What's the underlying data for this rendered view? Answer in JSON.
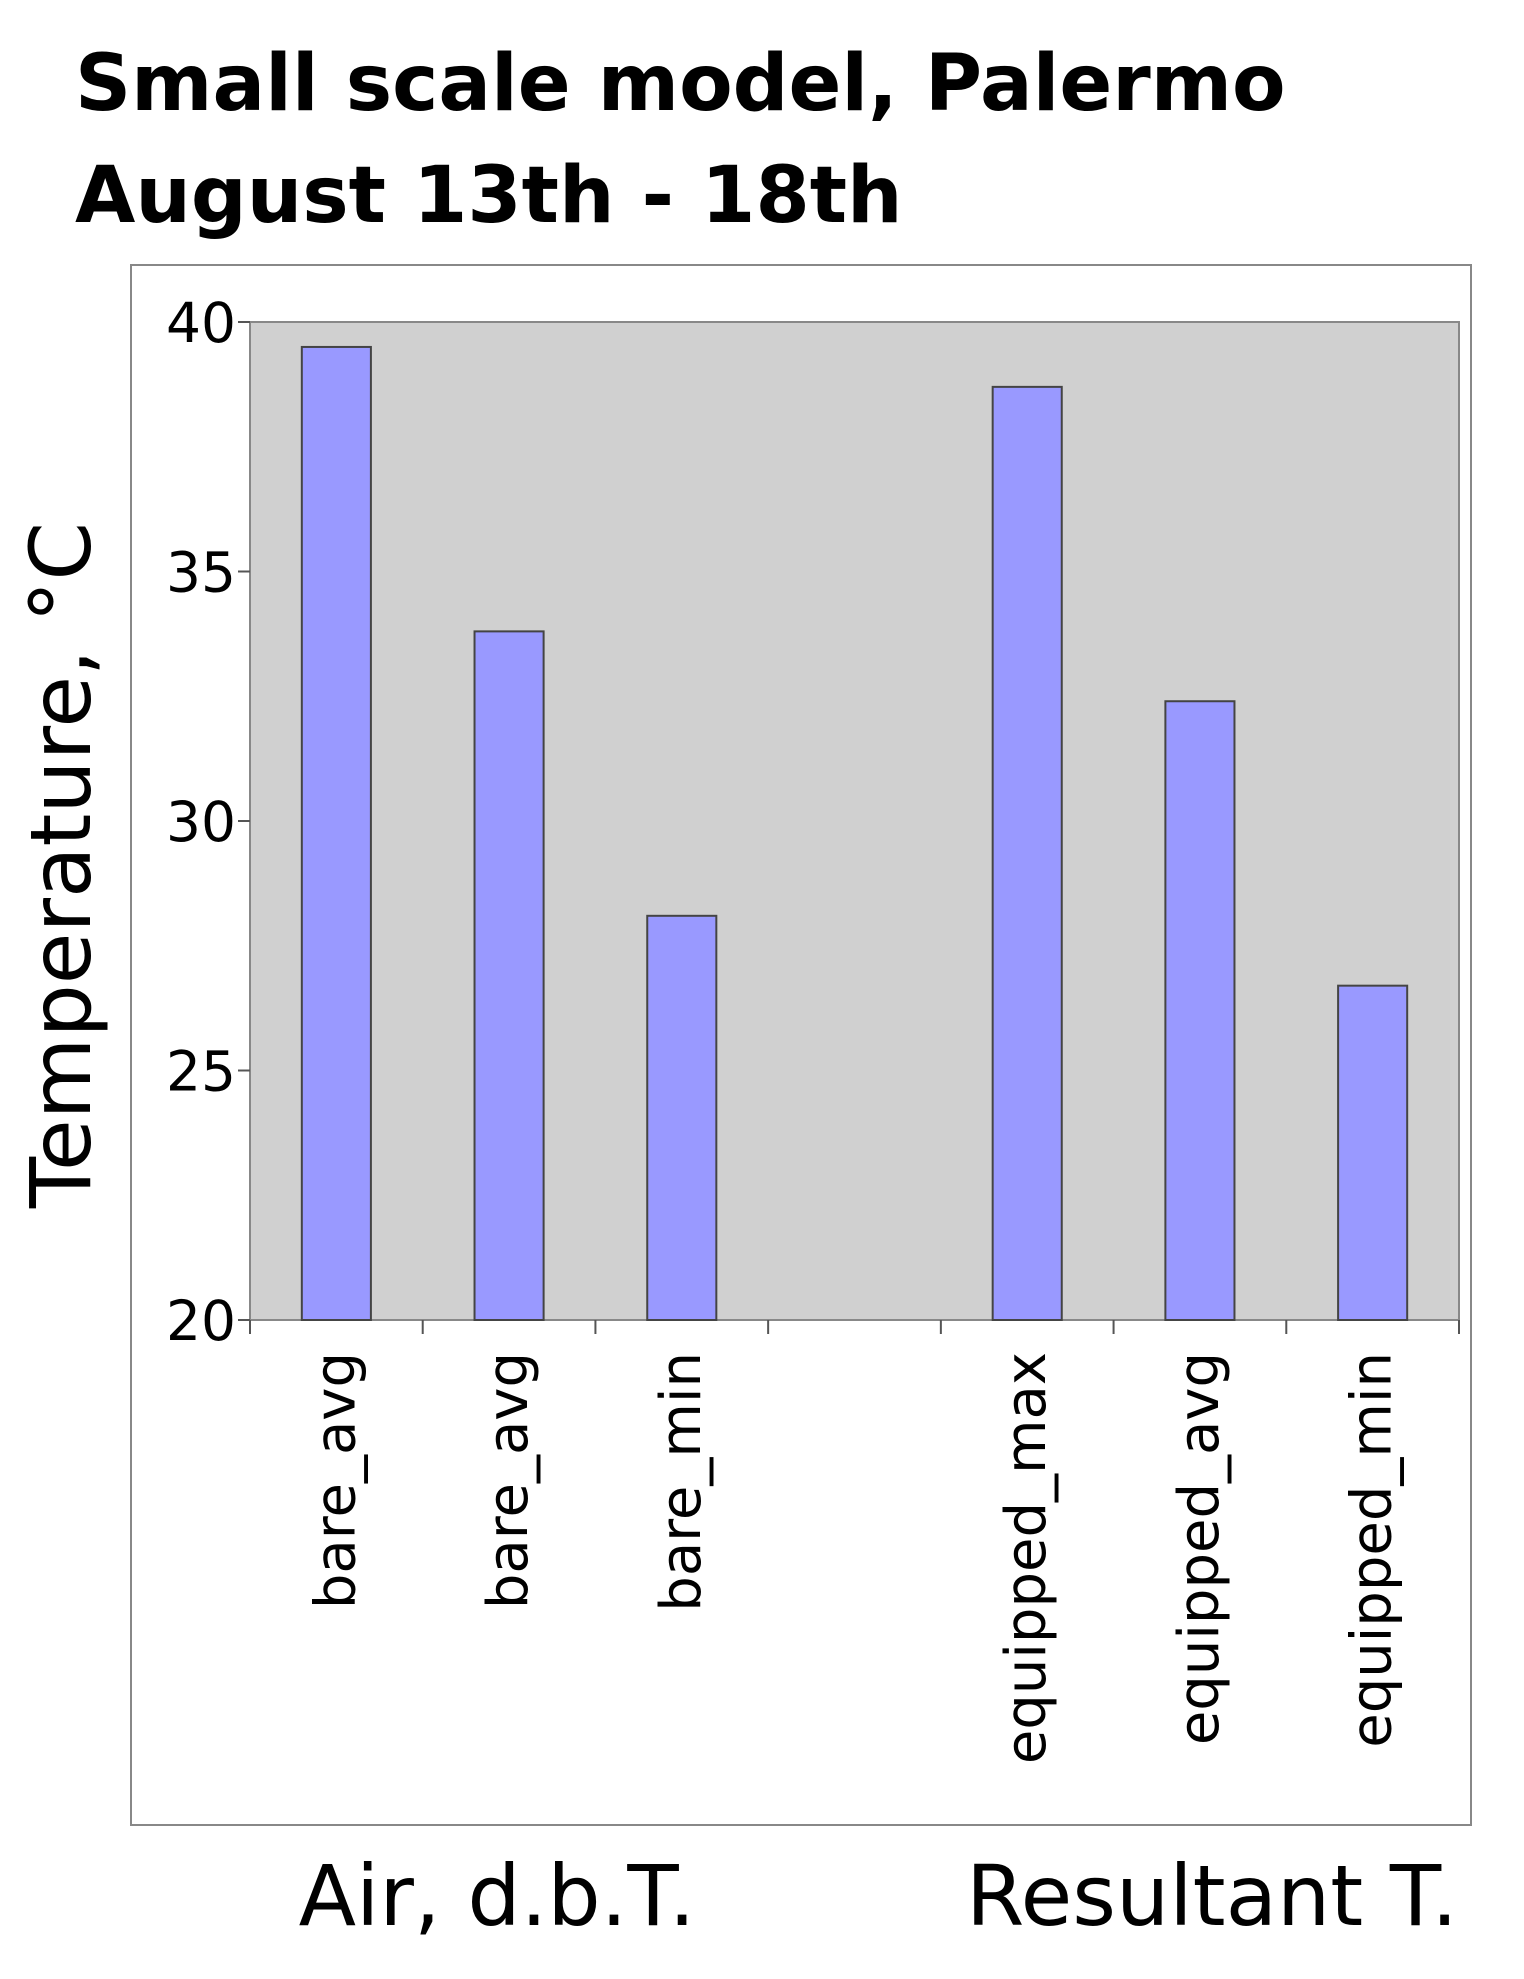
{
  "chart_data": {
    "type": "bar",
    "title": "Small scale model, Palermo",
    "subtitle": "August 13th - 18th",
    "y_label": "Temperature, °C",
    "categories": [
      "bare_avg",
      "bare_avg",
      "bare_min",
      null,
      "equipped_max",
      "equipped_avg",
      "equipped_min"
    ],
    "values": [
      39.5,
      33.8,
      28.1,
      null,
      38.7,
      32.4,
      26.7
    ],
    "group_labels": [
      "Air, d.b.T.",
      "Resultant T."
    ],
    "color": "#9999ff",
    "ylim": [
      20,
      40
    ],
    "yticks": [
      20,
      25,
      30,
      35,
      40
    ]
  }
}
